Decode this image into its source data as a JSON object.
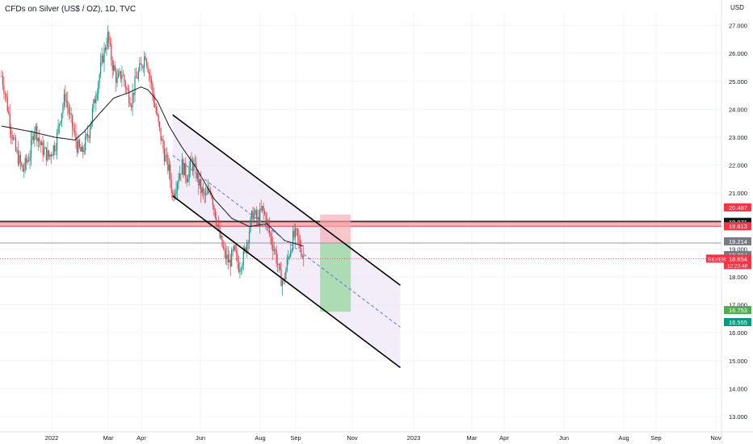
{
  "header": {
    "title": "CFDs on Silver (US$ / OZ), 1D, TVC"
  },
  "chart_data": {
    "type": "candlestick",
    "y_unit": "USD",
    "ylim": [
      12.45,
      27.45
    ],
    "y_ticks": [
      13,
      14,
      15,
      16,
      17,
      18,
      19,
      20,
      21,
      22,
      23,
      24,
      25,
      26,
      27
    ],
    "y_tick_labels": [
      "13.000",
      "14.000",
      "15.000",
      "16.000",
      "17.000",
      "18.000",
      "19.000",
      "20.000",
      "21.000",
      "22.000",
      "23.000",
      "24.000",
      "25.000",
      "26.000",
      "27.000"
    ],
    "x_tick_labels": [
      "2022",
      "Mar",
      "Apr",
      "Jun",
      "Aug",
      "Sep",
      "Nov",
      "2023",
      "Mar",
      "Apr",
      "Jun",
      "Aug",
      "Sep",
      "Nov"
    ],
    "ohlc_key_points": [
      {
        "t": 0,
        "v": 25.2
      },
      {
        "t": 3,
        "v": 24.6
      },
      {
        "t": 8,
        "v": 23.3
      },
      {
        "t": 12,
        "v": 22.5
      },
      {
        "t": 18,
        "v": 21.8
      },
      {
        "t": 24,
        "v": 22.4
      },
      {
        "t": 28,
        "v": 23.4
      },
      {
        "t": 34,
        "v": 22.6
      },
      {
        "t": 40,
        "v": 22.3
      },
      {
        "t": 46,
        "v": 22.8
      },
      {
        "t": 50,
        "v": 23.8
      },
      {
        "t": 54,
        "v": 24.5
      },
      {
        "t": 58,
        "v": 23.7
      },
      {
        "t": 64,
        "v": 22.7
      },
      {
        "t": 68,
        "v": 22.4
      },
      {
        "t": 74,
        "v": 23.2
      },
      {
        "t": 80,
        "v": 24.6
      },
      {
        "t": 86,
        "v": 25.9
      },
      {
        "t": 90,
        "v": 26.6
      },
      {
        "t": 94,
        "v": 25.6
      },
      {
        "t": 98,
        "v": 25.0
      },
      {
        "t": 102,
        "v": 25.3
      },
      {
        "t": 106,
        "v": 24.7
      },
      {
        "t": 110,
        "v": 24.3
      },
      {
        "t": 114,
        "v": 25.1
      },
      {
        "t": 118,
        "v": 25.5
      },
      {
        "t": 122,
        "v": 26.0
      },
      {
        "t": 126,
        "v": 25.1
      },
      {
        "t": 130,
        "v": 24.1
      },
      {
        "t": 134,
        "v": 23.2
      },
      {
        "t": 138,
        "v": 22.4
      },
      {
        "t": 142,
        "v": 21.8
      },
      {
        "t": 145,
        "v": 20.9
      },
      {
        "t": 149,
        "v": 21.5
      },
      {
        "t": 153,
        "v": 22.0
      },
      {
        "t": 157,
        "v": 21.6
      },
      {
        "t": 161,
        "v": 22.1
      },
      {
        "t": 165,
        "v": 21.7
      },
      {
        "t": 169,
        "v": 21.1
      },
      {
        "t": 173,
        "v": 20.8
      },
      {
        "t": 177,
        "v": 21.2
      },
      {
        "t": 181,
        "v": 20.3
      },
      {
        "t": 185,
        "v": 19.4
      },
      {
        "t": 189,
        "v": 18.8
      },
      {
        "t": 193,
        "v": 18.5
      },
      {
        "t": 197,
        "v": 18.9
      },
      {
        "t": 201,
        "v": 18.4
      },
      {
        "t": 205,
        "v": 18.7
      },
      {
        "t": 209,
        "v": 19.5
      },
      {
        "t": 213,
        "v": 20.3
      },
      {
        "t": 217,
        "v": 20.0
      },
      {
        "t": 221,
        "v": 20.4
      },
      {
        "t": 224,
        "v": 20.1
      },
      {
        "t": 228,
        "v": 19.4
      },
      {
        "t": 232,
        "v": 18.9
      },
      {
        "t": 236,
        "v": 18.0
      },
      {
        "t": 239,
        "v": 17.8
      },
      {
        "t": 243,
        "v": 18.7
      },
      {
        "t": 247,
        "v": 19.4
      },
      {
        "t": 250,
        "v": 19.5
      },
      {
        "t": 253,
        "v": 19.1
      },
      {
        "t": 256,
        "v": 18.7
      }
    ],
    "moving_average_key_points": [
      {
        "t": 0,
        "v": 23.4
      },
      {
        "t": 25,
        "v": 23.2
      },
      {
        "t": 45,
        "v": 23.0
      },
      {
        "t": 62,
        "v": 22.9
      },
      {
        "t": 70,
        "v": 23.2
      },
      {
        "t": 82,
        "v": 23.8
      },
      {
        "t": 95,
        "v": 24.4
      },
      {
        "t": 108,
        "v": 24.6
      },
      {
        "t": 118,
        "v": 24.8
      },
      {
        "t": 124,
        "v": 24.7
      },
      {
        "t": 132,
        "v": 24.3
      },
      {
        "t": 142,
        "v": 23.4
      },
      {
        "t": 152,
        "v": 22.7
      },
      {
        "t": 165,
        "v": 21.9
      },
      {
        "t": 180,
        "v": 20.8
      },
      {
        "t": 195,
        "v": 20.1
      },
      {
        "t": 210,
        "v": 19.8
      },
      {
        "t": 225,
        "v": 19.9
      },
      {
        "t": 240,
        "v": 19.3
      },
      {
        "t": 256,
        "v": 19.1
      }
    ],
    "price_labels": [
      {
        "text": "20.487",
        "value": 20.487,
        "bg": "#f23645",
        "fg": "#ffffff"
      },
      {
        "text": "19.971",
        "value": 19.971,
        "bg": "#131722",
        "fg": "#ffffff"
      },
      {
        "text": "19.813",
        "value": 19.813,
        "bg": "#f23645",
        "fg": "#ffffff"
      },
      {
        "text": "19.214",
        "value": 19.214,
        "bg": "#787b86",
        "fg": "#ffffff"
      },
      {
        "text": "18.894",
        "value": 18.894,
        "bg": "#787b86",
        "fg": "#ffffff"
      },
      {
        "text": "18.654",
        "value": 18.654,
        "bg": "#f23645",
        "fg": "#ffffff",
        "extra": "12:23:48",
        "tag": "SILVER"
      },
      {
        "text": "16.753",
        "value": 16.753,
        "bg": "#4caf50",
        "fg": "#ffffff"
      },
      {
        "text": "16.555",
        "value": 16.555,
        "bg": "#089981",
        "fg": "#ffffff"
      }
    ],
    "resistance_zone": [
      19.813,
      20.0
    ],
    "channel": {
      "upper": [
        {
          "t": 145,
          "v": 23.8
        },
        {
          "t": 338,
          "v": 17.7
        }
      ],
      "lower": [
        {
          "t": 145,
          "v": 20.9
        },
        {
          "t": 338,
          "v": 14.75
        }
      ],
      "mid": [
        {
          "t": 145,
          "v": 22.35
        },
        {
          "t": 338,
          "v": 16.2
        }
      ]
    },
    "position": {
      "entry": 19.214,
      "stop": 20.0,
      "target": 16.753,
      "t_start": 270,
      "t_end": 296
    },
    "colors": {
      "up": "#089981",
      "down": "#f23645",
      "ma": "#131722",
      "channel_fill": "#ede7f6",
      "zone": "#f23645",
      "mid_dash": "#5b7bd5"
    }
  }
}
